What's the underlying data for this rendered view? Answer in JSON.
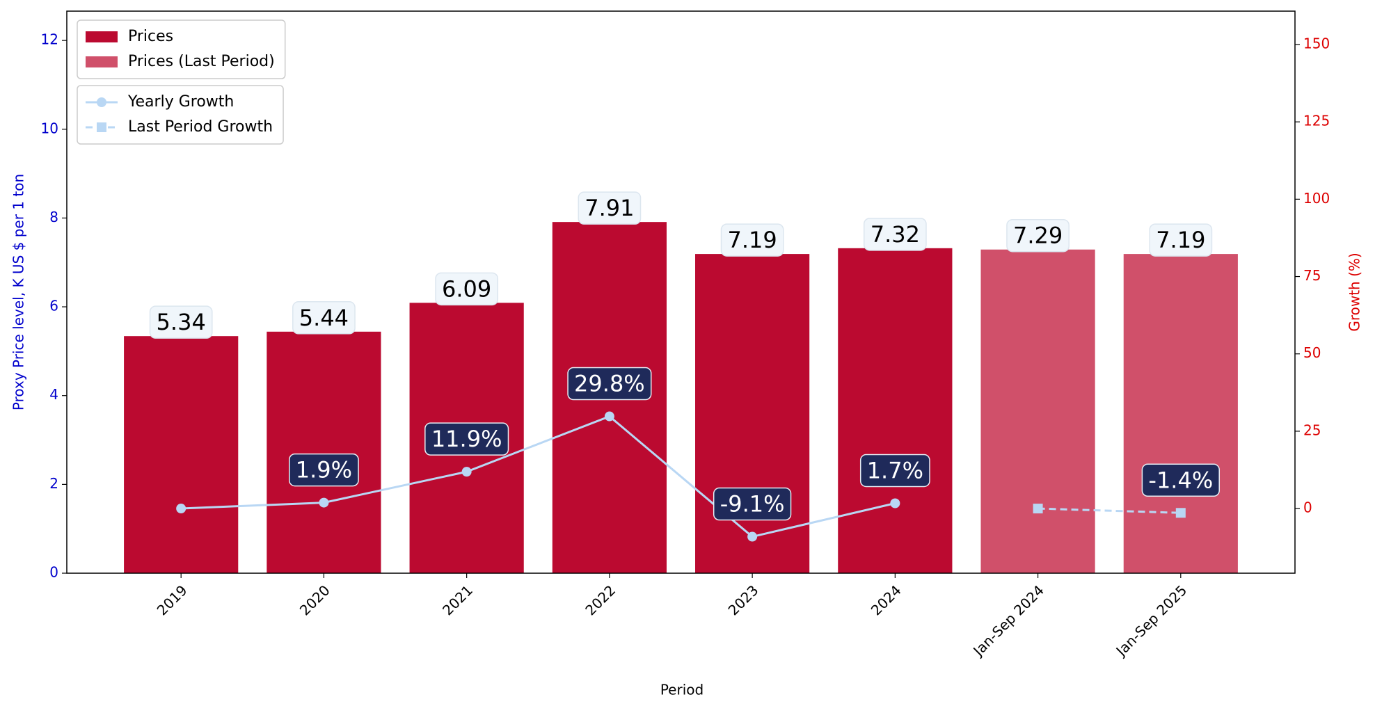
{
  "chart_data": {
    "type": "bar",
    "x_label": "Period",
    "y_label": "Proxy Price level, K US $ per 1 ton",
    "y2_label": "Growth (%)",
    "categories": [
      "2019",
      "2020",
      "2021",
      "2022",
      "2023",
      "2024",
      "Jan-Sep 2024",
      "Jan-Sep 2025"
    ],
    "ylim": [
      0,
      12.66
    ],
    "yticks": [
      0,
      2,
      4,
      6,
      8,
      10,
      12
    ],
    "y2lim": [
      -20.9,
      160.8
    ],
    "y2ticks": [
      0,
      25,
      50,
      75,
      100,
      125,
      150
    ],
    "y_axis_color": "#0000cc",
    "y2_axis_color": "#dd0000",
    "legend": "upper left",
    "series": [
      {
        "name": "Prices",
        "type": "bar",
        "color": "#bb0a30",
        "values": [
          5.34,
          5.44,
          6.09,
          7.91,
          7.19,
          7.32,
          null,
          null
        ]
      },
      {
        "name": "Prices (Last Period)",
        "type": "bar",
        "color": "#d0506a",
        "values": [
          null,
          null,
          null,
          null,
          null,
          null,
          7.29,
          7.19
        ]
      },
      {
        "name": "Yearly Growth",
        "type": "line",
        "axis": "y2",
        "color": "#b9d7f4",
        "marker": "circle",
        "linestyle": "solid",
        "values": [
          0,
          1.9,
          11.9,
          29.8,
          -9.1,
          1.7,
          null,
          null
        ],
        "value_labels": [
          null,
          "1.9%",
          "11.9%",
          "29.8%",
          "-9.1%",
          "1.7%",
          null,
          null
        ]
      },
      {
        "name": "Last Period Growth",
        "type": "line",
        "axis": "y2",
        "color": "#b9d7f4",
        "marker": "square",
        "linestyle": "dashed",
        "values": [
          null,
          null,
          null,
          null,
          null,
          null,
          0,
          -1.4
        ],
        "value_labels": [
          null,
          null,
          null,
          null,
          null,
          null,
          null,
          "-1.4%"
        ]
      }
    ]
  }
}
